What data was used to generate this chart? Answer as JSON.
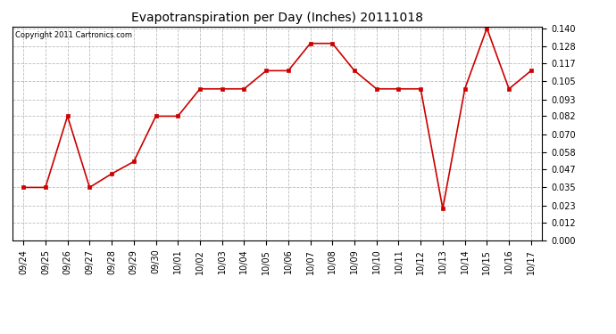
{
  "title": "Evapotranspiration per Day (Inches) 20111018",
  "copyright": "Copyright 2011 Cartronics.com",
  "x_labels": [
    "09/24",
    "09/25",
    "09/26",
    "09/27",
    "09/28",
    "09/29",
    "09/30",
    "10/01",
    "10/02",
    "10/03",
    "10/04",
    "10/05",
    "10/06",
    "10/07",
    "10/08",
    "10/09",
    "10/10",
    "10/11",
    "10/12",
    "10/13",
    "10/14",
    "10/15",
    "10/16",
    "10/17"
  ],
  "y_values": [
    0.035,
    0.035,
    0.082,
    0.035,
    0.044,
    0.052,
    0.082,
    0.082,
    0.1,
    0.1,
    0.1,
    0.112,
    0.112,
    0.13,
    0.13,
    0.112,
    0.1,
    0.1,
    0.1,
    0.021,
    0.1,
    0.14,
    0.1,
    0.112
  ],
  "line_color": "#cc0000",
  "marker": "s",
  "marker_size": 3,
  "bg_color": "#ffffff",
  "grid_color": "#aaaaaa",
  "ylim_min": 0.0,
  "ylim_max": 0.14,
  "yticks": [
    0.0,
    0.012,
    0.023,
    0.035,
    0.047,
    0.058,
    0.07,
    0.082,
    0.093,
    0.105,
    0.117,
    0.128,
    0.14
  ],
  "title_fontsize": 10,
  "tick_fontsize": 7,
  "copyright_fontsize": 6
}
